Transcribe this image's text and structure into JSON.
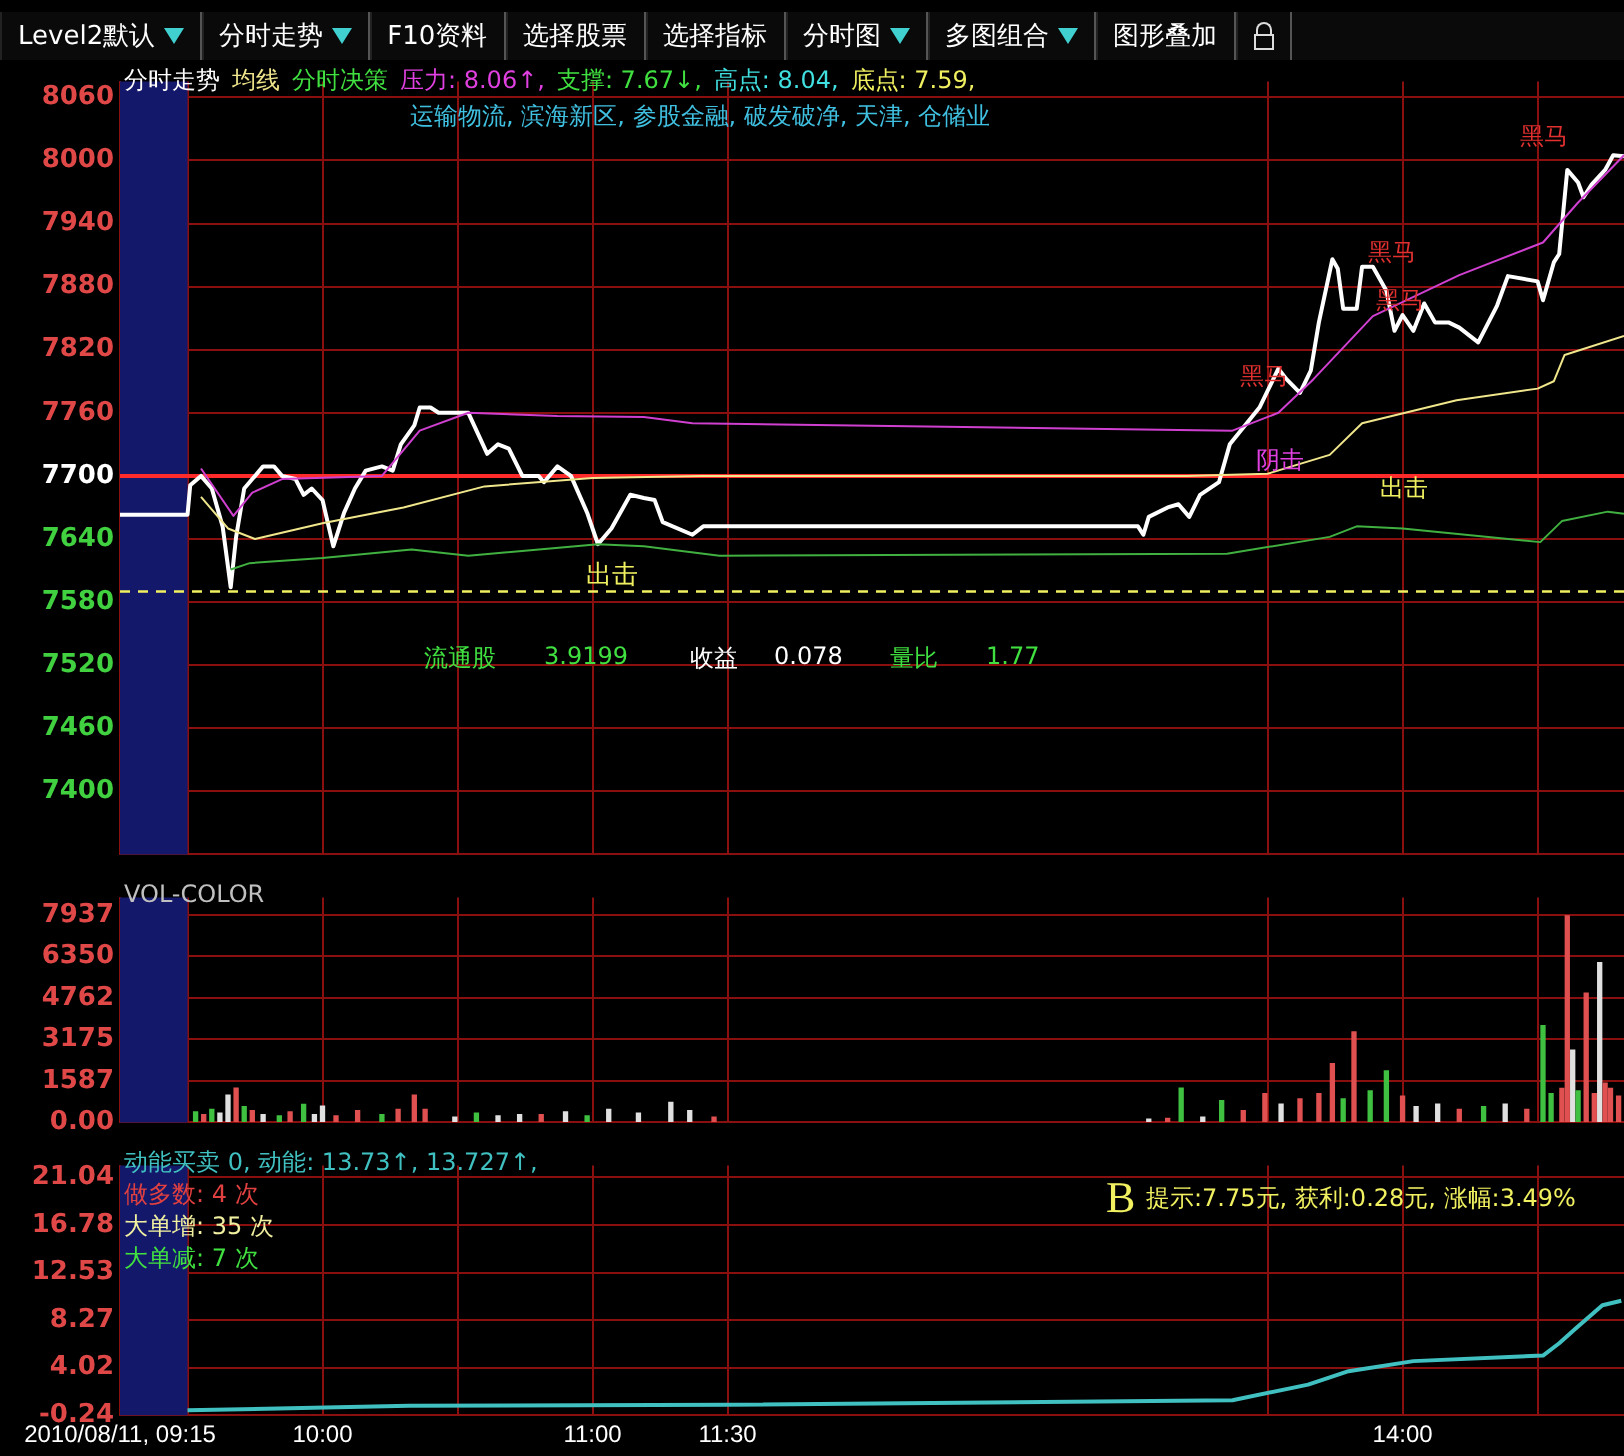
{
  "chart_data": [
    {
      "type": "line",
      "title": "分时走势",
      "x": [
        9.25,
        9.5,
        9.51,
        9.55,
        9.59,
        9.63,
        9.66,
        9.68,
        9.71,
        9.74,
        9.78,
        9.82,
        9.85,
        9.9,
        9.93,
        9.96,
        10.0,
        10.04,
        10.08,
        10.12,
        10.16,
        10.22,
        10.26,
        10.29,
        10.34,
        10.36,
        10.4,
        10.43,
        10.54,
        10.61,
        10.65,
        10.69,
        10.74,
        10.8,
        10.82,
        10.87,
        10.92,
        10.98,
        11.02,
        11.07,
        11.14,
        11.19,
        11.23,
        11.26,
        11.37,
        11.41,
        13.02,
        13.04,
        13.06,
        13.13,
        13.17,
        13.21,
        13.25,
        13.32,
        13.36,
        13.47,
        13.54,
        13.57,
        13.62,
        13.66,
        13.69,
        13.74,
        13.76,
        13.78,
        13.83,
        13.85,
        13.89,
        13.94,
        13.97,
        14.0,
        14.04,
        14.08,
        14.12,
        14.17,
        14.21,
        14.28,
        14.35,
        14.39,
        14.5,
        14.52,
        14.56,
        14.58,
        14.61,
        14.65,
        14.67,
        14.7,
        14.75,
        14.78,
        14.82
      ],
      "series": [
        {
          "color": "#ffffff",
          "values": [
            7663,
            7663,
            7691,
            7700,
            7688,
            7652,
            7594,
            7642,
            7688,
            7697,
            7709,
            7709,
            7700,
            7697,
            7682,
            7688,
            7677,
            7633,
            7665,
            7688,
            7705,
            7709,
            7705,
            7730,
            7748,
            7765,
            7765,
            7760,
            7760,
            7721,
            7730,
            7726,
            7700,
            7700,
            7694,
            7709,
            7700,
            7665,
            7635,
            7650,
            7682,
            7679,
            7677,
            7656,
            7644,
            7652,
            7652,
            7644,
            7661,
            7670,
            7673,
            7661,
            7682,
            7694,
            7730,
            7765,
            7802,
            7792,
            7779,
            7800,
            7846,
            7906,
            7897,
            7859,
            7859,
            7899,
            7899,
            7876,
            7838,
            7853,
            7838,
            7864,
            7846,
            7846,
            7841,
            7827,
            7862,
            7890,
            7885,
            7867,
            7903,
            7911,
            7991,
            7979,
            7965,
            7977,
            7991,
            8005,
            8004
          ]
        },
        {
          "name": "均线",
          "color": "#f0e68c",
          "x": [
            9.55,
            9.65,
            9.75,
            10.0,
            10.3,
            10.6,
            11.0,
            11.4,
            13.2,
            13.5,
            13.73,
            13.85,
            14.2,
            14.5,
            14.56,
            14.6,
            14.82
          ],
          "values": [
            7680,
            7650,
            7640,
            7655,
            7670,
            7690,
            7698,
            7700,
            7700,
            7702,
            7720,
            7750,
            7772,
            7783,
            7790,
            7815,
            7833
          ]
        },
        {
          "color": "#d040d0",
          "x": [
            9.55,
            9.67,
            9.74,
            9.85,
            10.22,
            10.36,
            10.54,
            10.87,
            11.19,
            11.37,
            13.37,
            13.54,
            13.67,
            13.89,
            14.21,
            14.52,
            14.65,
            14.82
          ],
          "values": [
            7707,
            7662,
            7684,
            7697,
            7700,
            7743,
            7760,
            7757,
            7756,
            7750,
            7743,
            7760,
            7792,
            7852,
            7891,
            7922,
            7960,
            8005
          ]
        },
        {
          "color": "#40b040",
          "x": [
            9.66,
            9.73,
            10.0,
            10.33,
            10.54,
            11.02,
            11.19,
            11.47,
            13.35,
            13.73,
            13.83,
            14.0,
            14.51,
            14.59,
            14.76,
            14.82
          ],
          "values": [
            7611,
            7617,
            7622,
            7630,
            7624,
            7635,
            7633,
            7624,
            7626,
            7642,
            7652,
            7650,
            7637,
            7657,
            7666,
            7664
          ]
        }
      ],
      "xlim": [
        9.25,
        14.82
      ],
      "ylim": [
        7340,
        8075
      ],
      "xticks": [
        {
          "value": 9.25,
          "label": null
        },
        {
          "value": 9.5,
          "label": null
        },
        {
          "value": 10,
          "label": null
        },
        {
          "value": 10.5,
          "label": null
        },
        {
          "value": 11,
          "label": null
        },
        {
          "value": 11.5,
          "label": null
        },
        {
          "value": 13.5,
          "label": null
        },
        {
          "value": 14,
          "label": null
        },
        {
          "value": 14.5,
          "label": null
        }
      ],
      "yticks": [
        7400,
        7460,
        7520,
        7580,
        7640,
        7700,
        7760,
        7820,
        7880,
        7940,
        8000,
        8060
      ],
      "tick_labels": "y",
      "grid": true,
      "bands": [
        {
          "axis": "x",
          "from": 9.25,
          "to": 9.5,
          "color": "#14186a"
        }
      ],
      "ref_lines": [
        {
          "axis": "y",
          "value": 7700,
          "color": "#ff2a2a"
        },
        {
          "axis": "y",
          "value": 7590,
          "label": "出击",
          "color": "#f0f060",
          "line_style": "dashed"
        }
      ],
      "annotations": [
        "分时决策",
        "压力: 8.06↑,",
        "支撑: 7.67↓,",
        "高点: 8.04,",
        "底点: 7.59,",
        "运输物流, 滨海新区, 参股金融, 破发破净, 天津, 仓储业",
        "流通股",
        "3.9199",
        "收益",
        "0.078",
        "量比",
        "1.77",
        "Level2默认",
        "分时走势",
        "F10资料",
        "选择股票",
        "选择指标",
        "分时图",
        "多图组合",
        "图形叠加",
        "出击",
        "阴击",
        "黑马",
        "黑马",
        "黑马",
        "黑马"
      ]
    },
    {
      "type": "bar",
      "x": [
        9.53,
        9.56,
        9.59,
        9.62,
        9.65,
        9.68,
        9.71,
        9.74,
        9.78,
        9.84,
        9.88,
        9.93,
        9.97,
        10.0,
        10.05,
        10.13,
        10.22,
        10.28,
        10.34,
        10.38,
        10.49,
        10.57,
        10.65,
        10.73,
        10.81,
        10.9,
        10.98,
        11.06,
        11.17,
        11.29,
        11.36,
        11.45,
        13.06,
        13.13,
        13.18,
        13.26,
        13.33,
        13.41,
        13.49,
        13.55,
        13.62,
        13.69,
        13.74,
        13.78,
        13.82,
        13.88,
        13.94,
        14.0,
        14.05,
        14.13,
        14.21,
        14.3,
        14.38,
        14.46,
        14.52,
        14.55,
        14.59,
        14.61,
        14.63,
        14.65,
        14.68,
        14.71,
        14.73,
        14.75,
        14.77,
        14.8
      ],
      "values": [
        400,
        300,
        500,
        350,
        1040,
        1310,
        600,
        450,
        300,
        250,
        400,
        690,
        300,
        620,
        250,
        450,
        300,
        500,
        1040,
        500,
        200,
        350,
        250,
        300,
        300,
        400,
        250,
        500,
        350,
        760,
        450,
        200,
        120,
        150,
        1310,
        200,
        830,
        450,
        1100,
        700,
        900,
        1100,
        2250,
        900,
        3460,
        1200,
        1970,
        1000,
        600,
        700,
        500,
        600,
        700,
        500,
        3700,
        1100,
        1300,
        7900,
        2760,
        1200,
        4940,
        1100,
        6110,
        1500,
        1300,
        1000
      ],
      "colors": [
        "#40c040",
        "#e05050",
        "#40c040",
        "#e0e0e0",
        "#e0e0e0",
        "#e05050",
        "#40c040",
        "#e05050",
        "#e0e0e0",
        "#40c040",
        "#e05050",
        "#40c040",
        "#e0e0e0",
        "#e0e0e0",
        "#e05050",
        "#e05050",
        "#40c040",
        "#e05050",
        "#e05050",
        "#e05050",
        "#e0e0e0",
        "#40c040",
        "#e0e0e0",
        "#e0e0e0",
        "#e05050",
        "#e0e0e0",
        "#40c040",
        "#e0e0e0",
        "#e0e0e0",
        "#e0e0e0",
        "#e0e0e0",
        "#e05050",
        "#e0e0e0",
        "#e05050",
        "#40c040",
        "#e0e0e0",
        "#40c040",
        "#e05050",
        "#e05050",
        "#e0e0e0",
        "#e05050",
        "#e05050",
        "#e05050",
        "#40c040",
        "#e05050",
        "#40c040",
        "#40c040",
        "#e05050",
        "#e0e0e0",
        "#e0e0e0",
        "#e05050",
        "#40c040",
        "#e0e0e0",
        "#e05050",
        "#40c040",
        "#40c040",
        "#e05050",
        "#e05050",
        "#e0e0e0",
        "#40c040",
        "#e05050",
        "#e05050",
        "#e0e0e0",
        "#e05050",
        "#e05050",
        "#e05050"
      ],
      "xlim": [
        9.25,
        14.82
      ],
      "ylim": [
        0,
        8600
      ],
      "xticks": [
        {
          "value": 9.25,
          "label": null
        },
        {
          "value": 9.5,
          "label": null
        },
        {
          "value": 10,
          "label": null
        },
        {
          "value": 10.5,
          "label": null
        },
        {
          "value": 11,
          "label": null
        },
        {
          "value": 11.5,
          "label": null
        },
        {
          "value": 13.5,
          "label": null
        },
        {
          "value": 14,
          "label": null
        },
        {
          "value": 14.5,
          "label": null
        }
      ],
      "yticks": [
        {
          "value": 0,
          "label": "0.00"
        },
        1587,
        3175,
        4762,
        6350,
        7937
      ],
      "tick_labels": "y",
      "grid": true,
      "bands": [
        {
          "axis": "x",
          "from": 9.25,
          "to": 9.5,
          "color": "#14186a"
        }
      ],
      "annotations": [
        "VOL-COLOR"
      ]
    },
    {
      "type": "line",
      "x": [
        9.5,
        10.32,
        11.5,
        13.37,
        13.65,
        13.8,
        14.04,
        14.52,
        14.58,
        14.64,
        14.74,
        14.81
      ],
      "series": [
        {
          "color": "#40c0c0",
          "values": [
            0.2,
            0.6,
            0.7,
            1.1,
            2.5,
            3.7,
            4.6,
            5.1,
            6.2,
            7.5,
            9.6,
            10.0
          ]
        }
      ],
      "xlim": [
        9.25,
        14.82
      ],
      "ylim": [
        -0.24,
        22.1
      ],
      "xticks": [
        {
          "value": 9.25,
          "label": "2010/08/11, 09:15"
        },
        {
          "value": 9.5,
          "label": null
        },
        {
          "value": 10,
          "label": "10:00"
        },
        {
          "value": 10.5,
          "label": null
        },
        {
          "value": 11,
          "label": "11:00"
        },
        {
          "value": 11.5,
          "label": "11:30"
        },
        {
          "value": 13.5,
          "label": null
        },
        {
          "value": 14,
          "label": "14:00"
        },
        {
          "value": 14.5,
          "label": null
        }
      ],
      "yticks": [
        -0.24,
        4.02,
        8.27,
        12.53,
        16.78,
        21.04
      ],
      "grid": true,
      "bands": [
        {
          "axis": "x",
          "from": 9.25,
          "to": 9.5,
          "color": "#14186a"
        }
      ],
      "annotations": [
        "动能买卖 0, 动能: 13.73↑, 13.727↑,",
        "做多数: 4 次",
        "大单增: 35 次",
        "大单减: 7 次",
        "B",
        "提示:7.75元, 获利:0.28元, 涨幅:3.49%"
      ]
    }
  ]
}
